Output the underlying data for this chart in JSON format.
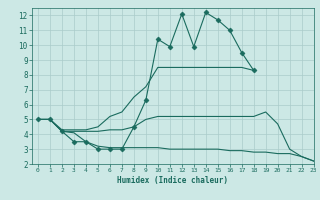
{
  "xlabel": "Humidex (Indice chaleur)",
  "bg_color": "#cce8e5",
  "grid_color": "#aaccca",
  "line_color": "#1a6b5e",
  "xlim": [
    -0.5,
    23
  ],
  "ylim": [
    2,
    12.5
  ],
  "xticks": [
    0,
    1,
    2,
    3,
    4,
    5,
    6,
    7,
    8,
    9,
    10,
    11,
    12,
    13,
    14,
    15,
    16,
    17,
    18,
    19,
    20,
    21,
    22,
    23
  ],
  "yticks": [
    2,
    3,
    4,
    5,
    6,
    7,
    8,
    9,
    10,
    11,
    12
  ],
  "lines": [
    {
      "x": [
        0,
        1,
        2,
        3,
        4,
        5,
        6,
        7,
        8,
        9,
        10,
        11,
        12,
        13,
        14,
        15,
        16,
        17,
        18
      ],
      "y": [
        5,
        5,
        4.2,
        3.5,
        3.5,
        3.0,
        3.0,
        3.0,
        4.5,
        6.3,
        10.4,
        9.9,
        12.1,
        9.9,
        12.2,
        11.7,
        11.0,
        9.5,
        8.3
      ],
      "marker": true
    },
    {
      "x": [
        0,
        1,
        2,
        3,
        4,
        5,
        6,
        7,
        8,
        9,
        10,
        11,
        12,
        13,
        14,
        15,
        16,
        17,
        18,
        19,
        20,
        21,
        22,
        23
      ],
      "y": [
        5,
        5,
        4.2,
        4.1,
        3.5,
        3.2,
        3.1,
        3.1,
        3.1,
        3.1,
        3.1,
        3.0,
        3.0,
        3.0,
        3.0,
        3.0,
        2.9,
        2.9,
        2.8,
        2.8,
        2.7,
        2.7,
        2.5,
        2.2
      ],
      "marker": false
    },
    {
      "x": [
        0,
        1,
        2,
        3,
        4,
        5,
        6,
        7,
        8,
        9,
        10,
        11,
        12,
        13,
        14,
        15,
        16,
        17,
        18,
        19,
        20,
        21,
        22,
        23
      ],
      "y": [
        5,
        5,
        4.2,
        4.2,
        4.2,
        4.2,
        4.3,
        4.3,
        4.5,
        5.0,
        5.2,
        5.2,
        5.2,
        5.2,
        5.2,
        5.2,
        5.2,
        5.2,
        5.2,
        5.5,
        4.7,
        3.0,
        2.5,
        2.2
      ],
      "marker": false
    },
    {
      "x": [
        0,
        1,
        2,
        3,
        4,
        5,
        6,
        7,
        8,
        9,
        10,
        11,
        12,
        13,
        14,
        15,
        16,
        17,
        18
      ],
      "y": [
        5,
        5,
        4.3,
        4.3,
        4.3,
        4.5,
        5.2,
        5.5,
        6.5,
        7.2,
        8.5,
        8.5,
        8.5,
        8.5,
        8.5,
        8.5,
        8.5,
        8.5,
        8.3
      ],
      "marker": false
    }
  ]
}
